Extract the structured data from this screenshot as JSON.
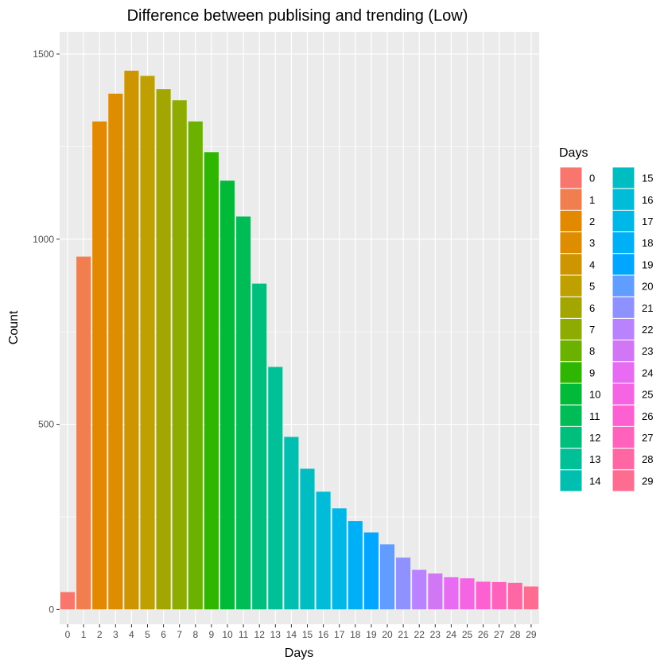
{
  "chart_data": {
    "type": "bar",
    "title": "Difference between publising and trending (Low)",
    "xlabel": "Days",
    "ylabel": "Count",
    "ylim": [
      -40,
      1560
    ],
    "yticks": [
      0,
      500,
      1000,
      1500
    ],
    "categories": [
      "0",
      "1",
      "2",
      "3",
      "4",
      "5",
      "6",
      "7",
      "8",
      "9",
      "10",
      "11",
      "12",
      "13",
      "14",
      "15",
      "16",
      "17",
      "18",
      "19",
      "20",
      "21",
      "22",
      "23",
      "24",
      "25",
      "26",
      "27",
      "28",
      "29"
    ],
    "values": [
      47,
      953,
      1318,
      1393,
      1455,
      1441,
      1405,
      1375,
      1318,
      1235,
      1158,
      1061,
      880,
      655,
      466,
      380,
      318,
      273,
      239,
      208,
      176,
      140,
      107,
      97,
      87,
      84,
      75,
      74,
      72,
      62
    ],
    "colors": [
      "#F8766D",
      "#F07E4F",
      "#E38900",
      "#DE8C00",
      "#CD9600",
      "#BFA000",
      "#A3A500",
      "#8DAB00",
      "#6BB100",
      "#2FB600",
      "#00BA38",
      "#00BC56",
      "#00BF7D",
      "#00C097",
      "#00BFB0",
      "#00BDC2",
      "#00BCD8",
      "#00B8E7",
      "#00B0F6",
      "#00A6FF",
      "#619CFF",
      "#8F91FF",
      "#B983FF",
      "#D177F5",
      "#E76BF3",
      "#F564E3",
      "#FD61D1",
      "#FF62BC",
      "#FF67A4",
      "#FF6C91"
    ],
    "legend": {
      "title": "Days",
      "labels": [
        "0",
        "1",
        "2",
        "3",
        "4",
        "5",
        "6",
        "7",
        "8",
        "9",
        "10",
        "11",
        "12",
        "13",
        "14",
        "15",
        "16",
        "17",
        "18",
        "19",
        "20",
        "21",
        "22",
        "23",
        "24",
        "25",
        "26",
        "27",
        "28",
        "29"
      ],
      "position": "right"
    },
    "grid": true,
    "background": "#EBEBEB"
  }
}
